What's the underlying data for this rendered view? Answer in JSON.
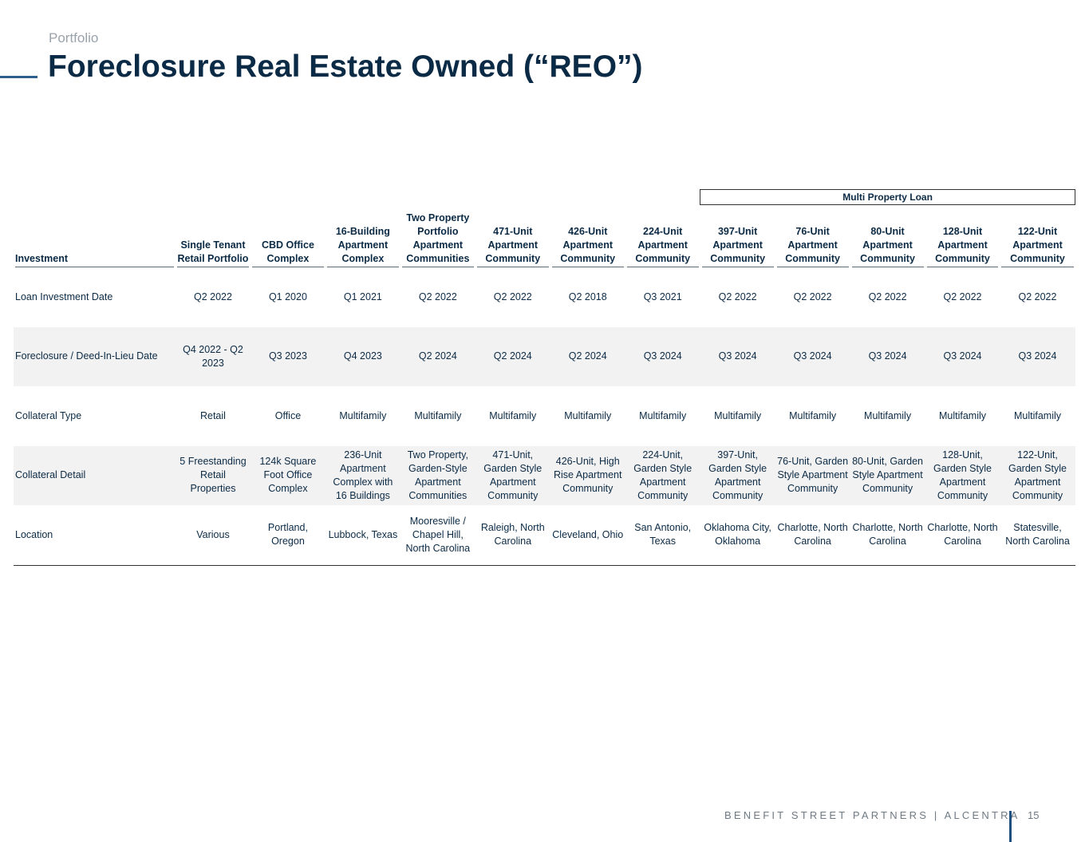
{
  "header": {
    "kicker": "Portfolio",
    "title": "Foreclosure Real Estate Owned (“REO”)"
  },
  "table": {
    "group_label": "Multi Property Loan",
    "columns": [
      "Investment",
      "Single Tenant Retail Portfolio",
      "CBD Office Complex",
      "16-Building Apartment Complex",
      "Two Property Portfolio Apartment Communities",
      "471-Unit Apartment Community",
      "426-Unit Apartment Community",
      "224-Unit Apartment Community",
      "397-Unit Apartment Community",
      "76-Unit Apartment Community",
      "80-Unit Apartment Community",
      "128-Unit Apartment Community",
      "122-Unit Apartment Community"
    ],
    "rows": [
      [
        "Loan Investment Date",
        "Q2 2022",
        "Q1 2020",
        "Q1 2021",
        "Q2 2022",
        "Q2 2022",
        "Q2 2018",
        "Q3 2021",
        "Q2 2022",
        "Q2 2022",
        "Q2 2022",
        "Q2 2022",
        "Q2 2022"
      ],
      [
        "Foreclosure / Deed-In-Lieu Date",
        "Q4 2022 - Q2 2023",
        "Q3 2023",
        "Q4 2023",
        "Q2 2024",
        "Q2 2024",
        "Q2 2024",
        "Q3 2024",
        "Q3 2024",
        "Q3 2024",
        "Q3 2024",
        "Q3 2024",
        "Q3 2024"
      ],
      [
        "Collateral Type",
        "Retail",
        "Office",
        "Multifamily",
        "Multifamily",
        "Multifamily",
        "Multifamily",
        "Multifamily",
        "Multifamily",
        "Multifamily",
        "Multifamily",
        "Multifamily",
        "Multifamily"
      ],
      [
        "Collateral Detail",
        "5 Freestanding Retail Properties",
        "124k Square Foot Office Complex",
        "236-Unit Apartment Complex with 16 Buildings",
        "Two Property, Garden-Style Apartment Communities",
        "471-Unit, Garden Style Apartment Community",
        "426-Unit, High Rise Apartment Community",
        "224-Unit, Garden Style Apartment Community",
        "397-Unit, Garden Style Apartment Community",
        "76-Unit, Garden Style Apartment Community",
        "80-Unit, Garden Style Apartment Community",
        "128-Unit, Garden Style Apartment Community",
        "122-Unit, Garden Style Apartment Community"
      ],
      [
        "Location",
        "Various",
        "Portland, Oregon",
        "Lubbock, Texas",
        "Mooresville / Chapel Hill, North Carolina",
        "Raleigh, North Carolina",
        "Cleveland, Ohio",
        "San Antonio, Texas",
        "Oklahoma City, Oklahoma",
        "Charlotte, North Carolina",
        "Charlotte, North Carolina",
        "Charlotte, North Carolina",
        "Statesville, North Carolina"
      ]
    ]
  },
  "footer": {
    "brand": "BENEFIT STREET PARTNERS | ALCENTRA",
    "page": "15"
  }
}
